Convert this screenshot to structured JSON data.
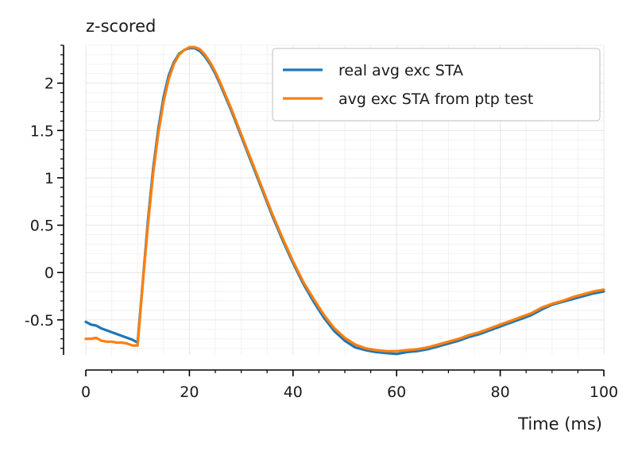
{
  "chart_data": {
    "type": "line",
    "title": "",
    "ylabel": "z-scored",
    "xlabel": "Time (ms)",
    "xlim": [
      0,
      100
    ],
    "ylim": [
      -0.87,
      2.4
    ],
    "xticks": [
      0,
      20,
      40,
      60,
      80,
      100
    ],
    "xtick_labels": [
      "0",
      "20",
      "40",
      "60",
      "80",
      "100"
    ],
    "yticks": [
      -0.5,
      0,
      0.5,
      1,
      1.5,
      2
    ],
    "ytick_labels": [
      "-0.5",
      "0",
      "0.5",
      "1",
      "1.5",
      "2"
    ],
    "grid": true,
    "legend_position": "top-right",
    "series": [
      {
        "name": "real avg exc STA",
        "color": "#1f77b4",
        "x": [
          0,
          1,
          2,
          3,
          4,
          5,
          6,
          7,
          8,
          9,
          10,
          11,
          12,
          13,
          14,
          15,
          16,
          17,
          18,
          19,
          20,
          21,
          22,
          23,
          24,
          25,
          26,
          28,
          30,
          32,
          34,
          36,
          38,
          40,
          42,
          44,
          46,
          48,
          50,
          52,
          54,
          56,
          58,
          60,
          62,
          64,
          66,
          68,
          70,
          72,
          74,
          76,
          78,
          80,
          82,
          84,
          86,
          88,
          90,
          92,
          94,
          96,
          98,
          100
        ],
        "y": [
          -0.52,
          -0.55,
          -0.56,
          -0.59,
          -0.61,
          -0.63,
          -0.65,
          -0.67,
          -0.69,
          -0.71,
          -0.74,
          -0.1,
          0.55,
          1.1,
          1.52,
          1.85,
          2.08,
          2.22,
          2.31,
          2.35,
          2.37,
          2.37,
          2.34,
          2.28,
          2.2,
          2.1,
          1.98,
          1.72,
          1.44,
          1.16,
          0.88,
          0.6,
          0.34,
          0.1,
          -0.12,
          -0.31,
          -0.48,
          -0.62,
          -0.72,
          -0.79,
          -0.82,
          -0.84,
          -0.85,
          -0.86,
          -0.84,
          -0.83,
          -0.81,
          -0.78,
          -0.75,
          -0.72,
          -0.68,
          -0.65,
          -0.61,
          -0.57,
          -0.53,
          -0.49,
          -0.45,
          -0.39,
          -0.34,
          -0.31,
          -0.28,
          -0.25,
          -0.22,
          -0.2
        ]
      },
      {
        "name": "avg exc STA from ptp test",
        "color": "#ff7f0e",
        "x": [
          0,
          1,
          2,
          3,
          4,
          5,
          6,
          7,
          8,
          9,
          10,
          11,
          12,
          13,
          14,
          15,
          16,
          17,
          18,
          19,
          20,
          21,
          22,
          23,
          24,
          25,
          26,
          28,
          30,
          32,
          34,
          36,
          38,
          40,
          42,
          44,
          46,
          48,
          50,
          52,
          54,
          56,
          58,
          60,
          62,
          64,
          66,
          68,
          70,
          72,
          74,
          76,
          78,
          80,
          82,
          84,
          86,
          88,
          90,
          92,
          94,
          96,
          98,
          100
        ],
        "y": [
          -0.7,
          -0.7,
          -0.69,
          -0.72,
          -0.73,
          -0.73,
          -0.74,
          -0.74,
          -0.75,
          -0.77,
          -0.77,
          -0.12,
          0.5,
          1.05,
          1.47,
          1.8,
          2.04,
          2.2,
          2.3,
          2.35,
          2.38,
          2.38,
          2.36,
          2.3,
          2.22,
          2.12,
          2.0,
          1.74,
          1.46,
          1.18,
          0.9,
          0.62,
          0.36,
          0.12,
          -0.1,
          -0.28,
          -0.45,
          -0.59,
          -0.69,
          -0.76,
          -0.8,
          -0.82,
          -0.83,
          -0.83,
          -0.82,
          -0.81,
          -0.79,
          -0.76,
          -0.73,
          -0.7,
          -0.66,
          -0.63,
          -0.59,
          -0.55,
          -0.51,
          -0.47,
          -0.43,
          -0.37,
          -0.33,
          -0.3,
          -0.26,
          -0.23,
          -0.2,
          -0.18
        ]
      }
    ]
  }
}
